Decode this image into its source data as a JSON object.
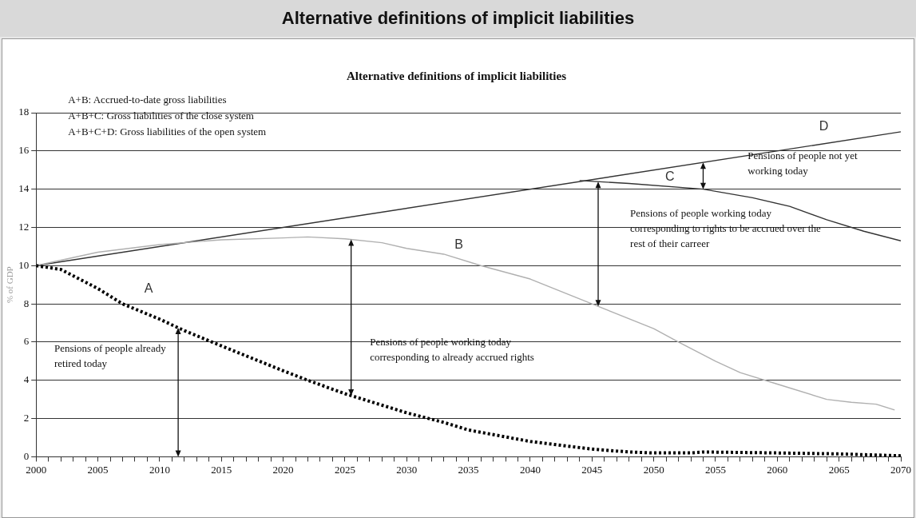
{
  "chart_data": {
    "type": "line",
    "title": "Alternative definitions of implicit liabilities",
    "subtitle": "Alternative definitions of implicit liabilities",
    "ylabel": "% of GDP",
    "xlim": [
      2000,
      2070
    ],
    "ylim": [
      0,
      18
    ],
    "yticks": [
      0,
      2,
      4,
      6,
      8,
      10,
      12,
      14,
      16,
      18
    ],
    "xticks": [
      2000,
      {
        "value": 2001,
        "label": null
      },
      {
        "value": 2002,
        "label": null
      },
      {
        "value": 2003,
        "label": null
      },
      {
        "value": 2004,
        "label": null
      },
      2005,
      {
        "value": 2006,
        "label": null
      },
      {
        "value": 2007,
        "label": null
      },
      {
        "value": 2008,
        "label": null
      },
      {
        "value": 2009,
        "label": null
      },
      2010,
      {
        "value": 2011,
        "label": null
      },
      {
        "value": 2012,
        "label": null
      },
      {
        "value": 2013,
        "label": null
      },
      {
        "value": 2014,
        "label": null
      },
      2015,
      {
        "value": 2016,
        "label": null
      },
      {
        "value": 2017,
        "label": null
      },
      {
        "value": 2018,
        "label": null
      },
      {
        "value": 2019,
        "label": null
      },
      2020,
      {
        "value": 2021,
        "label": null
      },
      {
        "value": 2022,
        "label": null
      },
      {
        "value": 2023,
        "label": null
      },
      {
        "value": 2024,
        "label": null
      },
      2025,
      {
        "value": 2026,
        "label": null
      },
      {
        "value": 2027,
        "label": null
      },
      {
        "value": 2028,
        "label": null
      },
      {
        "value": 2029,
        "label": null
      },
      2030,
      {
        "value": 2031,
        "label": null
      },
      {
        "value": 2032,
        "label": null
      },
      {
        "value": 2033,
        "label": null
      },
      {
        "value": 2034,
        "label": null
      },
      2035,
      {
        "value": 2036,
        "label": null
      },
      {
        "value": 2037,
        "label": null
      },
      {
        "value": 2038,
        "label": null
      },
      {
        "value": 2039,
        "label": null
      },
      2040,
      {
        "value": 2041,
        "label": null
      },
      {
        "value": 2042,
        "label": null
      },
      {
        "value": 2043,
        "label": null
      },
      {
        "value": 2044,
        "label": null
      },
      2045,
      {
        "value": 2046,
        "label": null
      },
      {
        "value": 2047,
        "label": null
      },
      {
        "value": 2048,
        "label": null
      },
      {
        "value": 2049,
        "label": null
      },
      2050,
      {
        "value": 2051,
        "label": null
      },
      {
        "value": 2052,
        "label": null
      },
      {
        "value": 2053,
        "label": null
      },
      {
        "value": 2054,
        "label": null
      },
      2055,
      {
        "value": 2056,
        "label": null
      },
      {
        "value": 2057,
        "label": null
      },
      {
        "value": 2058,
        "label": null
      },
      {
        "value": 2059,
        "label": null
      },
      2060,
      {
        "value": 2061,
        "label": null
      },
      {
        "value": 2062,
        "label": null
      },
      {
        "value": 2063,
        "label": null
      },
      {
        "value": 2064,
        "label": null
      },
      2065,
      {
        "value": 2066,
        "label": null
      },
      {
        "value": 2067,
        "label": null
      },
      {
        "value": 2068,
        "label": null
      },
      {
        "value": 2069,
        "label": null
      },
      2070
    ],
    "grid": "y",
    "legend": false,
    "marker": "none",
    "series": [
      {
        "color": "#000000",
        "line_style": "dotted",
        "x": [
          2000,
          2002,
          2005,
          2007,
          2010,
          2012,
          2015,
          2020,
          2022,
          2025,
          2030,
          2033,
          2035,
          2040,
          2045,
          2048,
          2050,
          2053,
          2054,
          2060,
          2065,
          2070
        ],
        "values": [
          10,
          9.8,
          8.8,
          8,
          7.2,
          6.6,
          5.8,
          4.5,
          4,
          3.3,
          2.3,
          1.8,
          1.4,
          0.8,
          0.4,
          0.25,
          0.2,
          0.2,
          0.25,
          0.2,
          0.15,
          0.05
        ]
      },
      {
        "color": "#b0b0b0",
        "line_style": "solid",
        "x": [
          2000,
          2005,
          2010,
          2015,
          2020,
          2022,
          2025,
          2028,
          2030,
          2033,
          2036,
          2040,
          2045,
          2050,
          2052,
          2055,
          2057,
          2060,
          2064,
          2066,
          2068,
          2069.5
        ],
        "values": [
          10,
          10.7,
          11.1,
          11.35,
          11.45,
          11.5,
          11.4,
          11.2,
          10.9,
          10.6,
          10,
          9.3,
          8,
          6.7,
          6,
          5,
          4.4,
          3.8,
          3,
          2.85,
          2.75,
          2.45
        ]
      },
      {
        "color": "#333333",
        "line_style": "solid",
        "x": [
          2044,
          2048,
          2054,
          2058,
          2061,
          2064,
          2067,
          2070
        ],
        "values": [
          14.45,
          14.3,
          14,
          13.55,
          13.1,
          12.4,
          11.8,
          11.3
        ]
      },
      {
        "color": "#333333",
        "line_style": "solid",
        "x": [
          2000,
          2070
        ],
        "values": [
          10,
          17
        ]
      }
    ],
    "annotations": [
      "A+B: Accrued-to-date gross liabilities",
      "A+B+C: Gross liabilities of the close system",
      "A+B+C+D: Gross liabilities of the open system",
      "Pensions of people already retired today",
      "Pensions of people working today corresponding to already accrued rights",
      "Pensions of people working today corresponding to rights to be accrued over the rest of their carreer",
      "Pensions of people not yet working today",
      "A",
      "B",
      "C",
      "D"
    ]
  }
}
